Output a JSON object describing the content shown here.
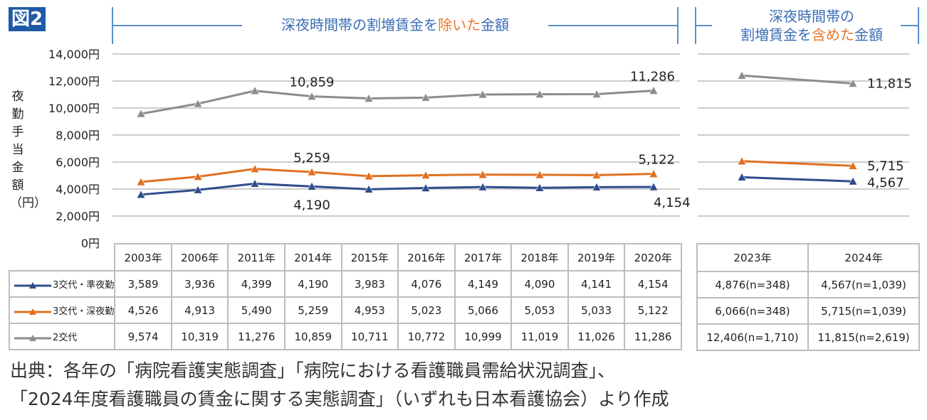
{
  "figure_label": "図2",
  "header_left": {
    "pre": "深夜時間帯の割増賃金を",
    "hl": "除いた",
    "post": "金額"
  },
  "header_right": {
    "line1": "深夜時間帯の",
    "pre": "割増賃金を",
    "hl": "含めた",
    "post": "金額"
  },
  "y_axis_label": "夜勤手当金額（円）",
  "source_line1": "出典：各年の「病院看護実態調査」「病院における看護職員需給状況調査」、",
  "source_line2": "「2024年度看護職員の賃金に関する実態調査」（いずれも日本看護協会）より作成",
  "chart_data": [
    {
      "type": "line",
      "ylim": [
        0,
        14000
      ],
      "yticks": [
        "0円",
        "2,000円",
        "4,000円",
        "6,000円",
        "8,000円",
        "10,000円",
        "12,000円",
        "14,000円"
      ],
      "categories": [
        "2003年",
        "2006年",
        "2011年",
        "2014年",
        "2015年",
        "2016年",
        "2017年",
        "2018年",
        "2019年",
        "2020年"
      ],
      "series": [
        {
          "name": "3交代・準夜勤",
          "color": "#2e4d8c",
          "values": [
            3589,
            3936,
            4399,
            4190,
            3983,
            4076,
            4149,
            4090,
            4141,
            4154
          ],
          "table": [
            "3,589",
            "3,936",
            "4,399",
            "4,190",
            "3,983",
            "4,076",
            "4,149",
            "4,090",
            "4,141",
            "4,154"
          ],
          "labels": {
            "3": "4,190",
            "9": "4,154"
          }
        },
        {
          "name": "3交代・深夜勤",
          "color": "#e07020",
          "values": [
            4526,
            4913,
            5490,
            5259,
            4953,
            5023,
            5066,
            5053,
            5033,
            5122
          ],
          "table": [
            "4,526",
            "4,913",
            "5,490",
            "5,259",
            "4,953",
            "5,023",
            "5,066",
            "5,053",
            "5,033",
            "5,122"
          ],
          "labels": {
            "3": "5,259",
            "9": "5,122"
          }
        },
        {
          "name": "2交代",
          "color": "#8c8c8c",
          "values": [
            9574,
            10319,
            11276,
            10859,
            10711,
            10772,
            10999,
            11019,
            11026,
            11286
          ],
          "table": [
            "9,574",
            "10,319",
            "11,276",
            "10,859",
            "10,711",
            "10,772",
            "10,999",
            "11,019",
            "11,026",
            "11,286"
          ],
          "labels": {
            "3": "10,859",
            "9": "11,286"
          }
        }
      ]
    },
    {
      "type": "line",
      "ylim": [
        0,
        14000
      ],
      "categories": [
        "2023年",
        "2024年"
      ],
      "series": [
        {
          "name": "3交代・準夜勤",
          "color": "#2e4d8c",
          "values": [
            4876,
            4567
          ],
          "table": [
            "4,876(n=348)",
            "4,567(n=1,039)"
          ],
          "labels": {
            "1": "4,567"
          }
        },
        {
          "name": "3交代・深夜勤",
          "color": "#e07020",
          "values": [
            6066,
            5715
          ],
          "table": [
            "6,066(n=348)",
            "5,715(n=1,039)"
          ],
          "labels": {
            "1": "5,715"
          }
        },
        {
          "name": "2交代",
          "color": "#8c8c8c",
          "values": [
            12406,
            11815
          ],
          "table": [
            "12,406(n=1,710)",
            "11,815(n=2,619)"
          ],
          "labels": {
            "1": "11,815"
          }
        }
      ]
    }
  ]
}
